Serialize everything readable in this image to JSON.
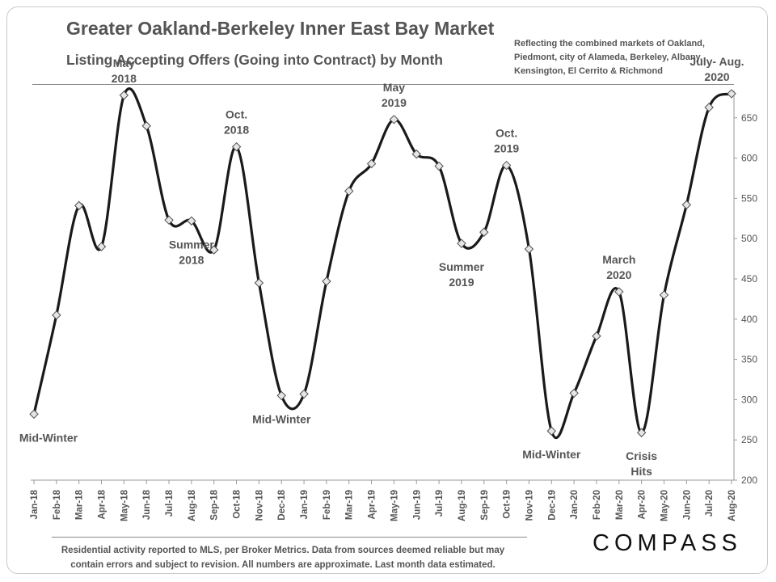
{
  "header": {
    "title": "Greater Oakland-Berkeley Inner East Bay Market",
    "subtitle": "Listing Accepting Offers (Going into Contract) by Month",
    "note": "Reflecting the combined markets of Oakland, Piedmont, city of Alameda, Berkeley, Albany, Kensington, El Cerrito & Richmond"
  },
  "footer": {
    "note": "Residential activity reported to MLS, per Broker Metrics. Data from sources deemed reliable but may contain errors and subject to revision. All numbers are approximate. Last month data estimated.",
    "brand": "COMPASS"
  },
  "chart_data": {
    "type": "line",
    "title": "Greater Oakland-Berkeley Inner East Bay Market",
    "subtitle": "Listing Accepting Offers (Going into Contract) by Month",
    "xlabel": "",
    "ylabel": "",
    "ylim": [
      200,
      700
    ],
    "yticks": [
      200,
      250,
      300,
      350,
      400,
      450,
      500,
      550,
      600,
      650
    ],
    "y_axis_side": "right",
    "grid": false,
    "legend": "none",
    "line_color": "#1a1a1a",
    "marker_color": "#e6e6e6",
    "categories": [
      "Jan-18",
      "Feb-18",
      "Mar-18",
      "Apr-18",
      "May-18",
      "Jun-18",
      "Jul-18",
      "Aug-18",
      "Sep-18",
      "Oct-18",
      "Nov-18",
      "Dec-18",
      "Jan-19",
      "Feb-19",
      "Mar-19",
      "Apr-19",
      "May-19",
      "Jun-19",
      "Jul-19",
      "Aug-19",
      "Sep-19",
      "Oct-19",
      "Nov-19",
      "Dec-19",
      "Jan-20",
      "Feb-20",
      "Mar-20",
      "Apr-20",
      "May-20",
      "Jun-20",
      "Jul-20",
      "Aug-20"
    ],
    "series": [
      {
        "values": [
          282,
          405,
          541,
          490,
          678,
          640,
          523,
          522,
          486,
          614,
          445,
          305,
          307,
          447,
          559,
          593,
          648,
          605,
          590,
          494,
          508,
          591,
          487,
          261,
          308,
          379,
          434,
          259,
          430,
          542,
          663,
          680
        ]
      }
    ],
    "annotations": [
      {
        "index": 0,
        "lines": [
          "Mid-Winter"
        ],
        "position": "below"
      },
      {
        "index": 4,
        "lines": [
          "May",
          "2018"
        ],
        "position": "above"
      },
      {
        "index": 7,
        "lines": [
          "Summer",
          "2018"
        ],
        "position": "below"
      },
      {
        "index": 9,
        "lines": [
          "Oct.",
          "2018"
        ],
        "position": "above"
      },
      {
        "index": 11,
        "lines": [
          "Mid-Winter"
        ],
        "position": "below"
      },
      {
        "index": 16,
        "lines": [
          "May",
          "2019"
        ],
        "position": "above"
      },
      {
        "index": 19,
        "lines": [
          "Summer",
          "2019"
        ],
        "position": "below"
      },
      {
        "index": 21,
        "lines": [
          "Oct.",
          "2019"
        ],
        "position": "above"
      },
      {
        "index": 23,
        "lines": [
          "Mid-Winter"
        ],
        "position": "below"
      },
      {
        "index": 26,
        "lines": [
          "March",
          "2020"
        ],
        "position": "above"
      },
      {
        "index": 27,
        "lines": [
          "Crisis",
          "Hits"
        ],
        "position": "below"
      },
      {
        "index": 31,
        "lines": [
          "July- Aug.",
          "2020"
        ],
        "position": "above"
      }
    ]
  }
}
